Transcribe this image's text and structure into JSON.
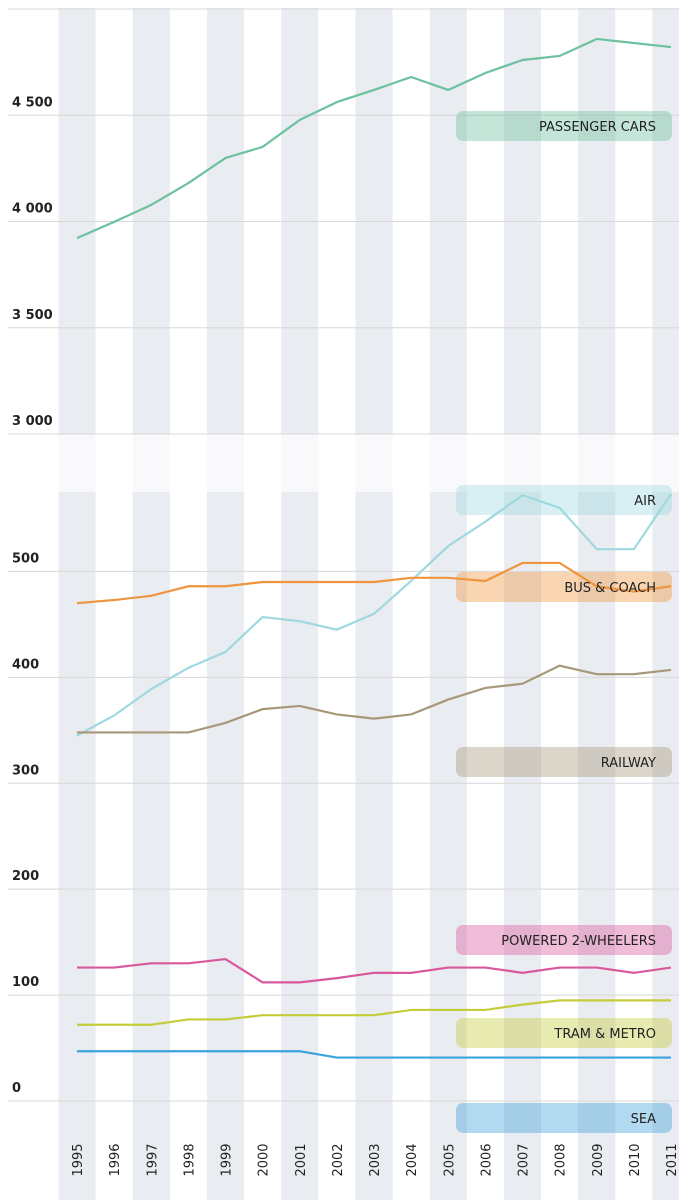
{
  "chart_data": {
    "type": "line",
    "categories": [
      "1995",
      "1996",
      "1997",
      "1998",
      "1999",
      "2000",
      "2001",
      "2002",
      "2003",
      "2004",
      "2005",
      "2006",
      "2007",
      "2008",
      "2009",
      "2010",
      "2011"
    ],
    "ylim": [
      0,
      575
    ],
    "yticks": [
      0,
      100,
      200,
      300,
      400,
      500
    ],
    "y2lim": [
      3000,
      5000
    ],
    "y2ticks": [
      {
        "value": 3000,
        "label": "3 000"
      },
      {
        "value": 3500,
        "label": "3 500"
      },
      {
        "value": 4000,
        "label": "4 000"
      },
      {
        "value": 4500,
        "label": "4 500"
      }
    ],
    "grid": true,
    "series": [
      {
        "name": "PASSENGER CARS",
        "color": "#6cc19e",
        "axis": "y2",
        "values": [
          3922,
          3998,
          4078,
          4181,
          4299,
          4351,
          4478,
          4562,
          4619,
          4680,
          4619,
          4699,
          4760,
          4779,
          4859,
          4840,
          4821
        ]
      },
      {
        "name": "AIR",
        "color": "#9ed9e0",
        "values": [
          345,
          364,
          389,
          409,
          424,
          457,
          453,
          445,
          460,
          491,
          524,
          547,
          572,
          560,
          521,
          521,
          573
        ]
      },
      {
        "name": "BUS & COACH",
        "color": "#f0953f",
        "values": [
          470,
          473,
          477,
          486,
          486,
          490,
          490,
          490,
          490,
          494,
          494,
          491,
          508,
          508,
          486,
          481,
          486
        ]
      },
      {
        "name": "RAILWAY",
        "color": "#a8987a",
        "values": [
          348,
          348,
          348,
          348,
          357,
          370,
          373,
          365,
          361,
          365,
          379,
          390,
          394,
          411,
          403,
          403,
          407
        ]
      },
      {
        "name": "POWERED 2-WHEELERS",
        "color": "#d9589d",
        "values": [
          126,
          126,
          130,
          130,
          134,
          112,
          112,
          116,
          121,
          121,
          126,
          126,
          121,
          126,
          126,
          121,
          126
        ]
      },
      {
        "name": "TRAM & METRO",
        "color": "#c5cc3a",
        "values": [
          72,
          72,
          72,
          77,
          77,
          81,
          81,
          81,
          81,
          86,
          86,
          86,
          91,
          95,
          95,
          95,
          95
        ]
      },
      {
        "name": "SEA",
        "color": "#3ba3dc",
        "values": [
          47,
          47,
          47,
          47,
          47,
          47,
          47,
          41,
          41,
          41,
          41,
          41,
          41,
          41,
          41,
          41,
          41
        ]
      }
    ]
  }
}
